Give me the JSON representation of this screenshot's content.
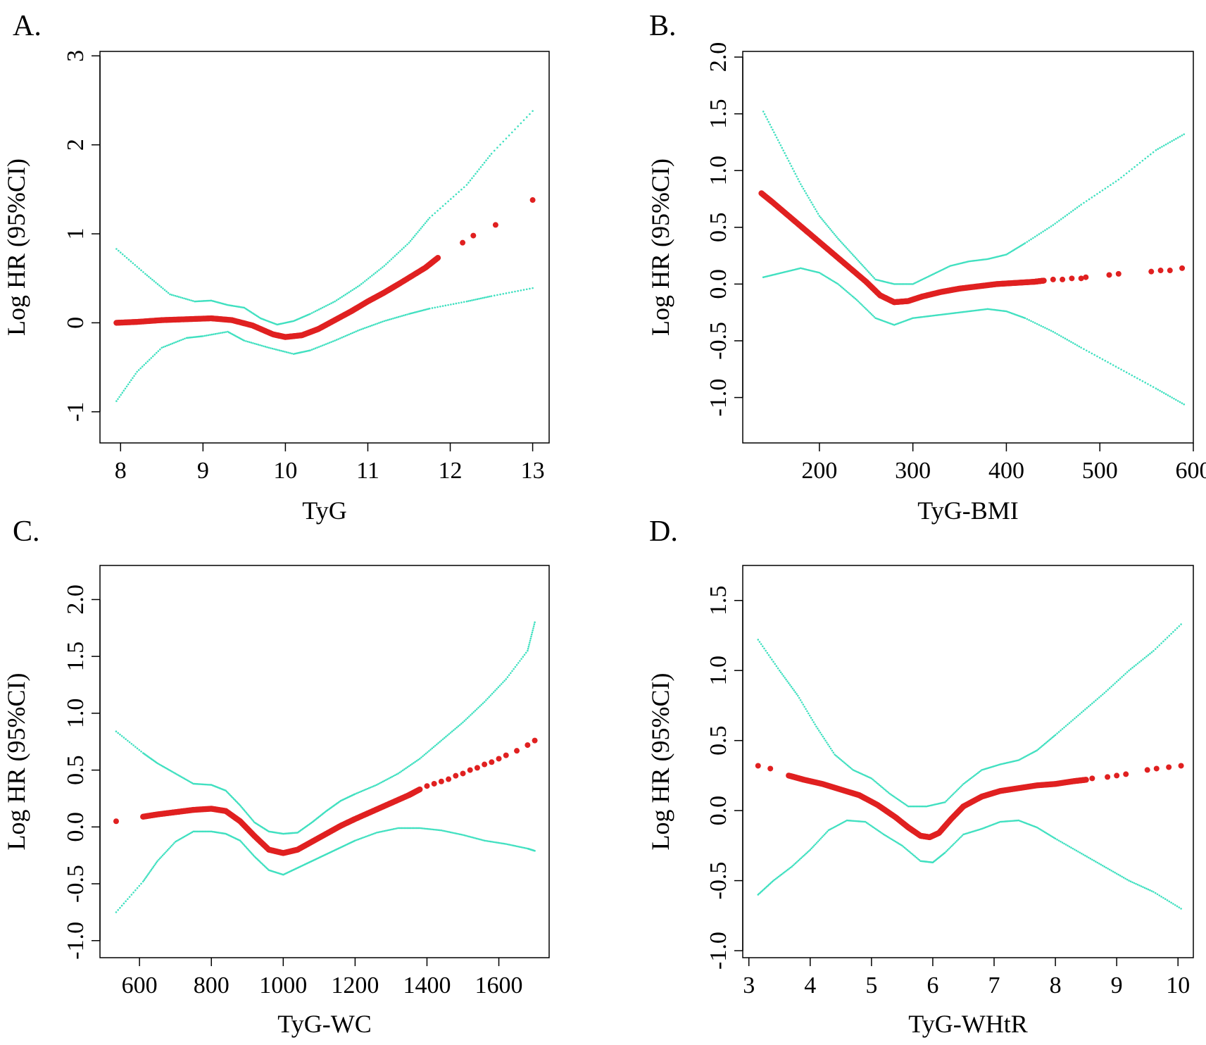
{
  "colors": {
    "fit": "#e02020",
    "ci": "#40e0c0",
    "axis": "#000000"
  },
  "chart_data": [
    {
      "id": "A",
      "panel_label": "A.",
      "type": "scatter",
      "xlabel": "TyG",
      "ylabel": "Log HR (95%CI)",
      "xlim": [
        7.75,
        13.2
      ],
      "ylim": [
        -1.35,
        3.05
      ],
      "xticks": [
        8,
        9,
        10,
        11,
        12,
        13
      ],
      "xtick_labels": [
        "8",
        "9",
        "10",
        "11",
        "12",
        "13"
      ],
      "yticks": [
        -1,
        0,
        1,
        2,
        3
      ],
      "ytick_labels": [
        "-1",
        "0",
        "1",
        "2",
        "3"
      ],
      "series": [
        {
          "name": "Log HR",
          "role": "fit",
          "x": [
            7.95,
            8.2,
            8.5,
            8.8,
            9.1,
            9.35,
            9.6,
            9.85,
            10.0,
            10.2,
            10.4,
            10.6,
            10.8,
            11.0,
            11.2,
            11.4,
            11.7,
            11.85
          ],
          "y": [
            0.0,
            0.01,
            0.03,
            0.04,
            0.05,
            0.03,
            -0.03,
            -0.13,
            -0.16,
            -0.14,
            -0.07,
            0.03,
            0.13,
            0.24,
            0.34,
            0.45,
            0.62,
            0.73
          ]
        },
        {
          "name": "Log HR (outliers)",
          "role": "fit-dots",
          "x": [
            12.15,
            12.28,
            12.55,
            13.0
          ],
          "y": [
            0.9,
            0.98,
            1.1,
            1.38
          ]
        },
        {
          "name": "Upper 95% CI",
          "role": "ci",
          "x": [
            7.95,
            8.3,
            8.6,
            8.9,
            9.1,
            9.3,
            9.5,
            9.7,
            9.9,
            10.1,
            10.3,
            10.6,
            10.9,
            11.2,
            11.5,
            11.75,
            12.2,
            12.5,
            13.0
          ],
          "y": [
            0.83,
            0.55,
            0.32,
            0.24,
            0.25,
            0.2,
            0.17,
            0.05,
            -0.02,
            0.02,
            0.1,
            0.24,
            0.42,
            0.64,
            0.9,
            1.18,
            1.55,
            1.9,
            2.38
          ]
        },
        {
          "name": "Lower 95% CI",
          "role": "ci",
          "x": [
            7.95,
            8.2,
            8.5,
            8.8,
            9.0,
            9.3,
            9.5,
            9.8,
            10.1,
            10.3,
            10.6,
            10.9,
            11.2,
            11.5,
            11.75,
            12.2,
            12.5,
            13.0
          ],
          "y": [
            -0.88,
            -0.55,
            -0.28,
            -0.17,
            -0.15,
            -0.1,
            -0.2,
            -0.28,
            -0.35,
            -0.31,
            -0.2,
            -0.08,
            0.02,
            0.1,
            0.16,
            0.24,
            0.3,
            0.39
          ]
        }
      ]
    },
    {
      "id": "B",
      "panel_label": "B.",
      "type": "scatter",
      "xlabel": "TyG-BMI",
      "ylabel": "Log HR (95%CI)",
      "xlim": [
        118,
        600
      ],
      "ylim": [
        -1.4,
        2.05
      ],
      "xticks": [
        200,
        300,
        400,
        500,
        600
      ],
      "xtick_labels": [
        "200",
        "300",
        "400",
        "500",
        "600"
      ],
      "yticks": [
        -1.0,
        -0.5,
        0.0,
        0.5,
        1.0,
        1.5,
        2.0
      ],
      "ytick_labels": [
        "-1.0",
        "-0.5",
        "0.0",
        "0.5",
        "1.0",
        "1.5",
        "2.0"
      ],
      "series": [
        {
          "name": "Log HR",
          "role": "fit",
          "x": [
            138,
            150,
            170,
            190,
            210,
            230,
            250,
            265,
            280,
            295,
            310,
            330,
            350,
            370,
            390,
            410,
            430,
            440
          ],
          "y": [
            0.8,
            0.72,
            0.58,
            0.44,
            0.3,
            0.16,
            0.02,
            -0.1,
            -0.16,
            -0.15,
            -0.11,
            -0.07,
            -0.04,
            -0.02,
            0.0,
            0.01,
            0.02,
            0.03
          ]
        },
        {
          "name": "Log HR (outliers)",
          "role": "fit-dots",
          "x": [
            450,
            460,
            470,
            480,
            485,
            510,
            520,
            555,
            565,
            575,
            588
          ],
          "y": [
            0.04,
            0.04,
            0.05,
            0.05,
            0.06,
            0.08,
            0.09,
            0.11,
            0.12,
            0.12,
            0.14
          ]
        },
        {
          "name": "Upper 95% CI",
          "role": "ci",
          "x": [
            140,
            160,
            180,
            200,
            220,
            240,
            260,
            280,
            300,
            320,
            340,
            360,
            380,
            400,
            420,
            450,
            480,
            520,
            560,
            590
          ],
          "y": [
            1.52,
            1.2,
            0.88,
            0.6,
            0.4,
            0.22,
            0.04,
            0.0,
            0.0,
            0.08,
            0.16,
            0.2,
            0.22,
            0.26,
            0.36,
            0.52,
            0.7,
            0.92,
            1.18,
            1.32
          ]
        },
        {
          "name": "Lower 95% CI",
          "role": "ci",
          "x": [
            140,
            160,
            180,
            200,
            220,
            240,
            260,
            280,
            300,
            320,
            340,
            360,
            380,
            400,
            420,
            450,
            480,
            520,
            560,
            590
          ],
          "y": [
            0.06,
            0.1,
            0.14,
            0.1,
            0.0,
            -0.14,
            -0.3,
            -0.36,
            -0.3,
            -0.28,
            -0.26,
            -0.24,
            -0.22,
            -0.24,
            -0.3,
            -0.42,
            -0.56,
            -0.74,
            -0.92,
            -1.06
          ]
        }
      ]
    },
    {
      "id": "C",
      "panel_label": "C.",
      "type": "scatter",
      "xlabel": "TyG-WC",
      "ylabel": "Log HR (95%CI)",
      "xlim": [
        490,
        1740
      ],
      "ylim": [
        -1.15,
        2.3
      ],
      "xticks": [
        600,
        800,
        1000,
        1200,
        1400,
        1600
      ],
      "xtick_labels": [
        "600",
        "800",
        "1000",
        "1200",
        "1400",
        "1600"
      ],
      "yticks": [
        -1.0,
        -0.5,
        0.0,
        0.5,
        1.0,
        1.5,
        2.0
      ],
      "ytick_labels": [
        "-1.0",
        "-0.5",
        "0.0",
        "0.5",
        "1.0",
        "1.5",
        "2.0"
      ],
      "series": [
        {
          "name": "Log HR",
          "role": "fit",
          "x": [
            610,
            650,
            700,
            750,
            800,
            840,
            880,
            920,
            960,
            1000,
            1040,
            1080,
            1120,
            1160,
            1200,
            1250,
            1300,
            1350,
            1380
          ],
          "y": [
            0.09,
            0.11,
            0.13,
            0.15,
            0.16,
            0.14,
            0.05,
            -0.08,
            -0.2,
            -0.23,
            -0.2,
            -0.13,
            -0.06,
            0.01,
            0.07,
            0.14,
            0.21,
            0.28,
            0.33
          ]
        },
        {
          "name": "Log HR (outliers)",
          "role": "fit-dots",
          "x": [
            535,
            1400,
            1420,
            1440,
            1460,
            1480,
            1500,
            1520,
            1540,
            1560,
            1580,
            1600,
            1620,
            1650,
            1680,
            1700
          ],
          "y": [
            0.05,
            0.36,
            0.38,
            0.4,
            0.42,
            0.45,
            0.47,
            0.5,
            0.52,
            0.55,
            0.57,
            0.6,
            0.63,
            0.67,
            0.72,
            0.76
          ]
        },
        {
          "name": "Upper 95% CI",
          "role": "ci",
          "x": [
            535,
            610,
            650,
            700,
            750,
            800,
            840,
            880,
            920,
            960,
            1000,
            1040,
            1080,
            1120,
            1160,
            1200,
            1260,
            1320,
            1380,
            1440,
            1500,
            1560,
            1620,
            1680,
            1700
          ],
          "y": [
            0.84,
            0.65,
            0.56,
            0.47,
            0.38,
            0.37,
            0.32,
            0.19,
            0.04,
            -0.04,
            -0.06,
            -0.05,
            0.04,
            0.14,
            0.23,
            0.29,
            0.37,
            0.47,
            0.6,
            0.76,
            0.92,
            1.1,
            1.3,
            1.55,
            1.8
          ]
        },
        {
          "name": "Lower 95% CI",
          "role": "ci",
          "x": [
            535,
            610,
            650,
            700,
            750,
            800,
            840,
            880,
            920,
            960,
            1000,
            1040,
            1080,
            1120,
            1160,
            1200,
            1260,
            1320,
            1380,
            1440,
            1500,
            1560,
            1620,
            1680,
            1700
          ],
          "y": [
            -0.75,
            -0.48,
            -0.3,
            -0.13,
            -0.04,
            -0.04,
            -0.06,
            -0.12,
            -0.26,
            -0.38,
            -0.42,
            -0.36,
            -0.3,
            -0.24,
            -0.18,
            -0.12,
            -0.05,
            -0.01,
            -0.01,
            -0.03,
            -0.07,
            -0.12,
            -0.15,
            -0.19,
            -0.21
          ]
        }
      ]
    },
    {
      "id": "D",
      "panel_label": "D.",
      "type": "scatter",
      "xlabel": "TyG-WHtR",
      "ylabel": "Log HR (95%CI)",
      "xlim": [
        2.9,
        10.25
      ],
      "ylim": [
        -1.05,
        1.75
      ],
      "xticks": [
        3,
        4,
        5,
        6,
        7,
        8,
        9,
        10
      ],
      "xtick_labels": [
        "3",
        "4",
        "5",
        "6",
        "7",
        "8",
        "9",
        "10"
      ],
      "yticks": [
        -1.0,
        -0.5,
        0.0,
        0.5,
        1.0,
        1.5
      ],
      "ytick_labels": [
        "-1.0",
        "-0.5",
        "0.0",
        "0.5",
        "1.0",
        "1.5"
      ],
      "series": [
        {
          "name": "Log HR",
          "role": "fit",
          "x": [
            3.65,
            3.9,
            4.2,
            4.5,
            4.8,
            5.1,
            5.4,
            5.6,
            5.8,
            5.95,
            6.1,
            6.3,
            6.5,
            6.8,
            7.1,
            7.4,
            7.7,
            8.0,
            8.3,
            8.5
          ],
          "y": [
            0.25,
            0.22,
            0.19,
            0.15,
            0.11,
            0.04,
            -0.05,
            -0.12,
            -0.18,
            -0.19,
            -0.16,
            -0.06,
            0.03,
            0.1,
            0.14,
            0.16,
            0.18,
            0.19,
            0.21,
            0.22
          ]
        },
        {
          "name": "Log HR (outliers)",
          "role": "fit-dots",
          "x": [
            3.15,
            3.35,
            8.6,
            8.85,
            9.0,
            9.15,
            9.5,
            9.65,
            9.85,
            10.05
          ],
          "y": [
            0.32,
            0.3,
            0.23,
            0.24,
            0.25,
            0.26,
            0.29,
            0.3,
            0.31,
            0.32
          ]
        },
        {
          "name": "Upper 95% CI",
          "role": "ci",
          "x": [
            3.15,
            3.5,
            3.8,
            4.1,
            4.4,
            4.7,
            5.0,
            5.3,
            5.6,
            5.9,
            6.2,
            6.5,
            6.8,
            7.1,
            7.4,
            7.7,
            8.0,
            8.4,
            8.8,
            9.2,
            9.6,
            10.05
          ],
          "y": [
            1.22,
            1.0,
            0.82,
            0.6,
            0.4,
            0.29,
            0.23,
            0.12,
            0.03,
            0.03,
            0.06,
            0.19,
            0.29,
            0.33,
            0.36,
            0.43,
            0.54,
            0.69,
            0.84,
            1.0,
            1.14,
            1.33
          ]
        },
        {
          "name": "Lower 95% CI",
          "role": "ci",
          "x": [
            3.15,
            3.4,
            3.7,
            4.0,
            4.3,
            4.6,
            4.9,
            5.2,
            5.5,
            5.8,
            6.0,
            6.2,
            6.5,
            6.8,
            7.1,
            7.4,
            7.7,
            8.0,
            8.4,
            8.8,
            9.2,
            9.6,
            10.05
          ],
          "y": [
            -0.6,
            -0.5,
            -0.4,
            -0.28,
            -0.14,
            -0.07,
            -0.08,
            -0.17,
            -0.25,
            -0.36,
            -0.37,
            -0.3,
            -0.17,
            -0.13,
            -0.08,
            -0.07,
            -0.12,
            -0.2,
            -0.3,
            -0.4,
            -0.5,
            -0.58,
            -0.7
          ]
        }
      ]
    }
  ]
}
